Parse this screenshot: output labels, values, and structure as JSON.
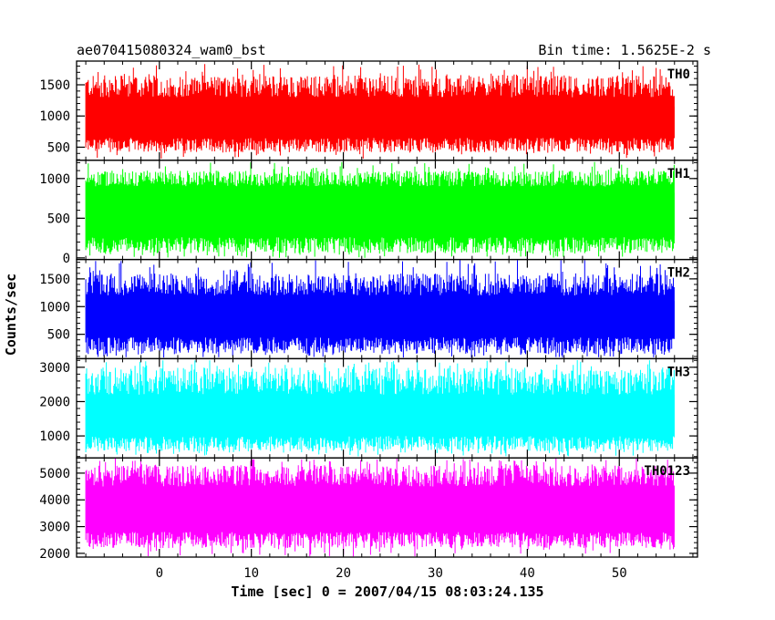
{
  "chart_data": {
    "type": "line",
    "title": "ae070415080324_wam0_bst",
    "subtitle": "Bin time: 1.5625E-2 s",
    "xlabel": "Time [sec] 0 = 2007/04/15 08:03:24.135",
    "ylabel": "Counts/sec",
    "xlim": [
      -9,
      58.5
    ],
    "x_ticks": [
      0,
      10,
      20,
      30,
      40,
      50
    ],
    "x_range_data": [
      -8,
      56
    ],
    "grid": false,
    "panels": [
      {
        "name": "TH0",
        "color": "#ff0000",
        "ylim": [
          290,
          1880
        ],
        "y_ticks": [
          500,
          1000,
          1500
        ],
        "band_low": [
          420,
          650
        ],
        "band_high": [
          1300,
          1650
        ],
        "peak_max": 1840,
        "dip_min": 300,
        "core": [
          650,
          1150
        ]
      },
      {
        "name": "TH1",
        "color": "#00ff00",
        "ylim": [
          -20,
          1230
        ],
        "y_ticks": [
          0,
          500,
          1000
        ],
        "band_low": [
          60,
          260
        ],
        "band_high": [
          900,
          1100
        ],
        "peak_max": 1210,
        "dip_min": 0,
        "core": [
          280,
          820
        ]
      },
      {
        "name": "TH2",
        "color": "#0000ff",
        "ylim": [
          60,
          1850
        ],
        "y_ticks": [
          500,
          1000,
          1500
        ],
        "band_low": [
          150,
          450
        ],
        "band_high": [
          1200,
          1600
        ],
        "peak_max": 1840,
        "dip_min": 80,
        "core": [
          450,
          1100
        ]
      },
      {
        "name": "TH3",
        "color": "#00ffff",
        "ylim": [
          360,
          3250
        ],
        "y_ticks": [
          1000,
          2000,
          3000
        ],
        "band_low": [
          550,
          1000
        ],
        "band_high": [
          2200,
          3000
        ],
        "peak_max": 3220,
        "dip_min": 400,
        "core": [
          1000,
          2200
        ]
      },
      {
        "name": "TH0123",
        "color": "#ff00ff",
        "ylim": [
          1860,
          5570
        ],
        "y_ticks": [
          2000,
          3000,
          4000,
          5000
        ],
        "band_low": [
          2200,
          2800
        ],
        "band_high": [
          4500,
          5300
        ],
        "peak_max": 5550,
        "dip_min": 1880,
        "core": [
          2800,
          4500
        ]
      }
    ]
  }
}
